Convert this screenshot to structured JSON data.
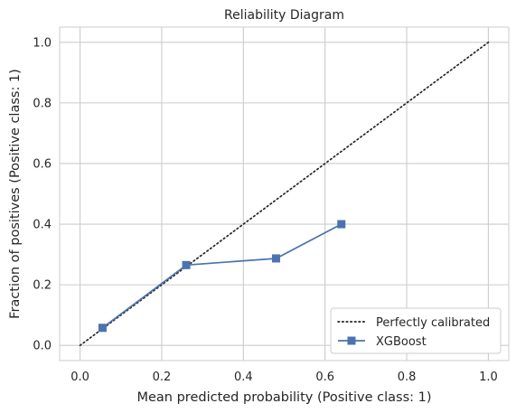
{
  "chart_data": {
    "type": "line",
    "title": "Reliability Diagram",
    "xlabel": "Mean predicted probability (Positive class: 1)",
    "ylabel": "Fraction of positives (Positive class: 1)",
    "xlim": [
      -0.05,
      1.05
    ],
    "ylim": [
      -0.05,
      1.05
    ],
    "xticks": [
      "0.0",
      "0.2",
      "0.4",
      "0.6",
      "0.8",
      "1.0"
    ],
    "yticks": [
      "0.0",
      "0.2",
      "0.4",
      "0.6",
      "0.8",
      "1.0"
    ],
    "grid": true,
    "legend_position": "bottom-right",
    "series": [
      {
        "name": "Perfectly calibrated",
        "style": "dotted",
        "color": "#262626",
        "marker": "none",
        "x": [
          0.0,
          1.0
        ],
        "y": [
          0.0,
          1.0
        ]
      },
      {
        "name": "XGBoost",
        "style": "solid",
        "color": "#4c72b0",
        "marker": "square",
        "x": [
          0.055,
          0.26,
          0.48,
          0.64
        ],
        "y": [
          0.058,
          0.265,
          0.287,
          0.4
        ]
      }
    ]
  }
}
